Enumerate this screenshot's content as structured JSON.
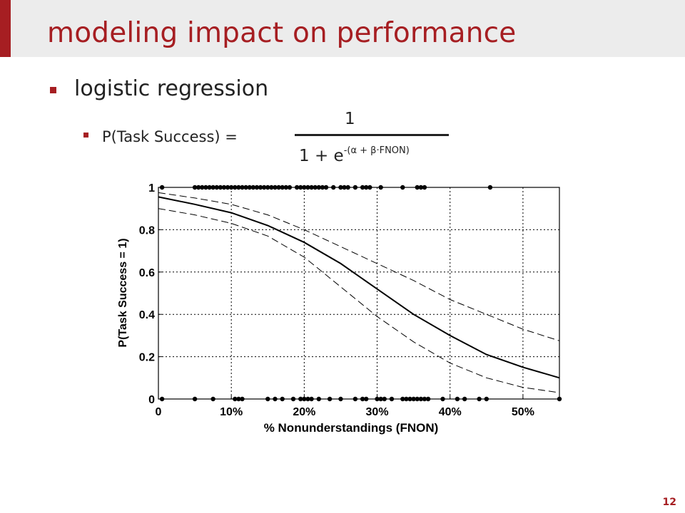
{
  "slide": {
    "title": "modeling impact on performance",
    "bullet1": "logistic regression",
    "bullet2_lhs": "P(Task Success) =",
    "formula_numerator": "1",
    "formula_denominator_base": "1 + e",
    "formula_exponent": "-(α + β·FNON)",
    "page_number": "12"
  },
  "colors": {
    "accent": "#a61e22",
    "title_band": "#ececec"
  },
  "chart_data": {
    "type": "line",
    "xlabel": "% Nonunderstandings (FNON)",
    "ylabel": "P(Task Success = 1)",
    "xlim": [
      0,
      55
    ],
    "ylim": [
      0,
      1
    ],
    "xticks": [
      0,
      10,
      20,
      30,
      40,
      50
    ],
    "xtick_labels": [
      "0",
      "10%",
      "20%",
      "30%",
      "40%",
      "50%"
    ],
    "yticks": [
      0,
      0.2,
      0.4,
      0.6,
      0.8,
      1
    ],
    "ytick_labels": [
      "0",
      "0.2",
      "0.4",
      "0.6",
      "0.8",
      "1"
    ],
    "grid": true,
    "series": [
      {
        "style": "solid",
        "x": [
          0,
          5,
          10,
          15,
          20,
          25,
          30,
          35,
          40,
          45,
          50,
          55
        ],
        "y": [
          0.955,
          0.92,
          0.88,
          0.82,
          0.74,
          0.64,
          0.52,
          0.4,
          0.3,
          0.21,
          0.15,
          0.1
        ]
      },
      {
        "style": "dashed",
        "x": [
          0,
          5,
          10,
          15,
          20,
          25,
          30,
          35,
          40,
          45,
          50,
          55
        ],
        "y": [
          0.975,
          0.95,
          0.92,
          0.87,
          0.8,
          0.72,
          0.64,
          0.56,
          0.47,
          0.4,
          0.33,
          0.275
        ]
      },
      {
        "style": "dashed",
        "x": [
          0,
          5,
          10,
          15,
          20,
          25,
          30,
          35,
          40,
          45,
          50,
          55
        ],
        "y": [
          0.9,
          0.87,
          0.83,
          0.77,
          0.67,
          0.53,
          0.39,
          0.27,
          0.17,
          0.1,
          0.055,
          0.03
        ]
      }
    ],
    "observations": {
      "success_x": [
        0.5,
        5,
        5.5,
        6,
        6.5,
        7,
        7.5,
        8,
        8.5,
        9,
        9.5,
        10,
        10.5,
        11,
        11.5,
        12,
        12.5,
        13,
        13.5,
        14,
        14.5,
        15,
        15.5,
        16,
        16.5,
        17,
        17.5,
        18,
        19,
        19.5,
        20,
        20.5,
        21,
        21.5,
        22,
        22.5,
        23,
        24,
        25,
        25.5,
        26,
        27,
        28,
        28.5,
        29,
        30.5,
        33.5,
        35.5,
        36,
        36.5,
        45.5
      ],
      "failure_x": [
        0.5,
        5,
        7.5,
        10.5,
        11,
        11.5,
        15,
        16,
        17,
        18.5,
        19.5,
        20,
        20.5,
        21,
        22,
        23.5,
        25,
        27,
        28,
        28.5,
        30,
        30.5,
        31,
        32,
        33.5,
        34,
        34.5,
        35,
        35.5,
        36,
        36.5,
        37,
        39,
        41,
        42,
        44,
        45,
        55
      ]
    }
  }
}
